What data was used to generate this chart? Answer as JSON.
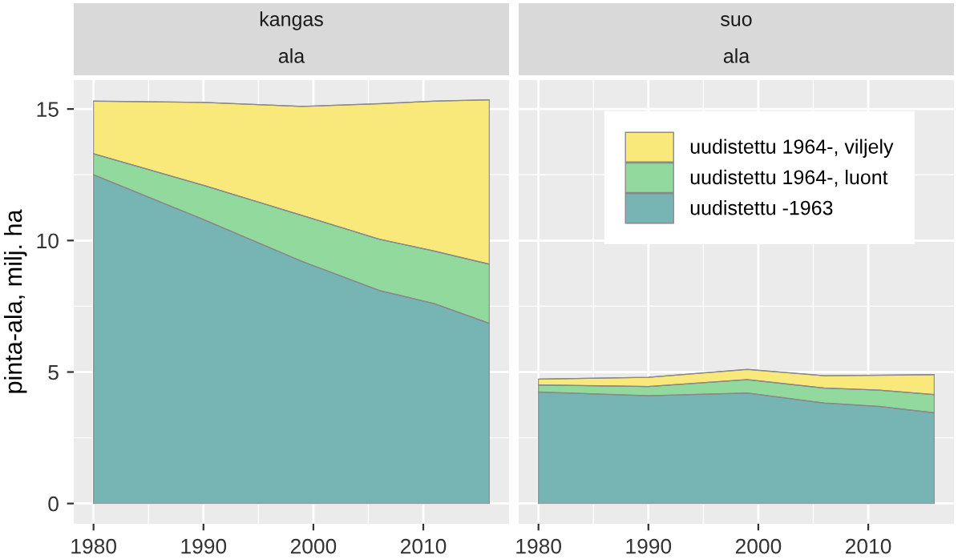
{
  "chart_data": [
    {
      "type": "area",
      "title": "kangas",
      "subtitle": "ala",
      "ylabel": "pinta-ala, milj. ha",
      "stacked": true,
      "x": [
        1980,
        1990,
        1999,
        2006,
        2011,
        2016
      ],
      "series": [
        {
          "color": "#77b5b5",
          "values": [
            12.5,
            10.8,
            9.2,
            8.1,
            7.6,
            6.85
          ]
        },
        {
          "color": "#92d99d",
          "values": [
            0.8,
            1.3,
            1.75,
            1.95,
            2.0,
            2.25
          ]
        },
        {
          "color": "#f8e97a",
          "values": [
            2.0,
            3.15,
            4.15,
            5.15,
            5.7,
            6.25
          ]
        }
      ],
      "xlim": [
        1978.2,
        2017.8
      ],
      "xticks": [
        1980,
        1990,
        2000,
        2010
      ],
      "ylim": [
        -0.77,
        16.1
      ],
      "yticks": [
        0,
        5,
        10,
        15
      ],
      "grid": true
    },
    {
      "type": "area",
      "title": "suo",
      "subtitle": "ala",
      "stacked": true,
      "x": [
        1980,
        1990,
        1999,
        2006,
        2011,
        2016
      ],
      "series": [
        {
          "name": "uudistettu -1963",
          "color": "#77b5b5",
          "values": [
            4.24,
            4.1,
            4.2,
            3.82,
            3.69,
            3.45
          ]
        },
        {
          "name": "uudistettu 1964-, luont",
          "color": "#92d99d",
          "values": [
            0.27,
            0.35,
            0.51,
            0.57,
            0.62,
            0.69
          ]
        },
        {
          "name": "uudistettu 1964-, viljely",
          "color": "#f8e97a",
          "values": [
            0.22,
            0.35,
            0.39,
            0.47,
            0.57,
            0.76
          ]
        }
      ],
      "xlim": [
        1978.2,
        2017.8
      ],
      "xticks": [
        1980,
        1990,
        2000,
        2010
      ],
      "ylim": [
        -0.77,
        16.1
      ],
      "yticks": [
        0,
        5,
        10,
        15
      ],
      "grid": true,
      "legend": "top right",
      "tick_labels": "x"
    }
  ]
}
